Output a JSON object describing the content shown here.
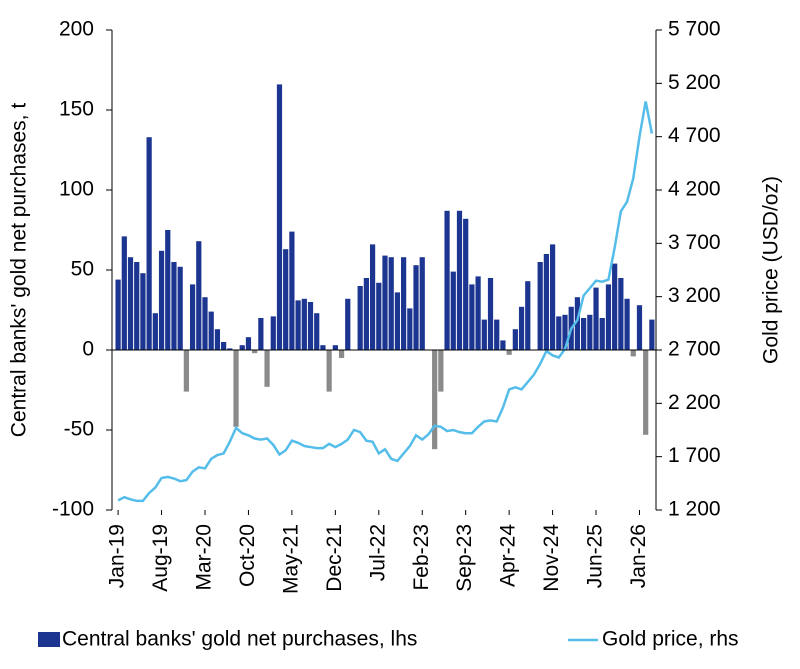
{
  "chart_data": {
    "type": "bar",
    "y_label": "Central banks' gold net purchases, t",
    "y2_label": "Gold price (USD/oz)",
    "categories": [
      "Jan-19",
      null,
      null,
      null,
      null,
      null,
      null,
      "Aug-19",
      null,
      null,
      null,
      null,
      null,
      null,
      "Mar-20",
      null,
      null,
      null,
      null,
      null,
      null,
      "Oct-20",
      null,
      null,
      null,
      null,
      null,
      null,
      "May-21",
      null,
      null,
      null,
      null,
      null,
      null,
      "Dec-21",
      null,
      null,
      null,
      null,
      null,
      null,
      "Jul-22",
      null,
      null,
      null,
      null,
      null,
      null,
      "Feb-23",
      null,
      null,
      null,
      null,
      null,
      null,
      "Sep-23",
      null,
      null,
      null,
      null,
      null,
      null,
      "Apr-24",
      null,
      null,
      null,
      null,
      null,
      null,
      "Nov-24",
      null,
      null,
      null,
      null,
      null,
      null,
      "Jun-25",
      null,
      null,
      null,
      null,
      null,
      null,
      "Jan-26",
      null,
      null
    ],
    "series": [
      {
        "name": "Central banks' gold net purchases, lhs",
        "type": "bar",
        "color": "#1c3591",
        "negative_color": "#8a8a8a",
        "values": [
          44,
          71,
          58,
          55,
          48,
          133,
          23,
          62,
          75,
          55,
          52,
          -26,
          41,
          68,
          33,
          24,
          13,
          5,
          1,
          -48,
          3,
          8,
          -2,
          20,
          -23,
          21,
          166,
          63,
          74,
          31,
          32,
          30,
          23,
          3,
          -26,
          3,
          -5,
          32,
          0,
          40,
          45,
          66,
          42,
          59,
          58,
          36,
          58,
          26,
          53,
          58,
          0,
          -62,
          -26,
          87,
          49,
          87,
          82,
          41,
          46,
          19,
          45,
          19,
          6,
          -3,
          13,
          27,
          43,
          0,
          55,
          60,
          66,
          21,
          22,
          27,
          33,
          20,
          22,
          39,
          20,
          41,
          54,
          45,
          32,
          -4,
          28,
          -53,
          19
        ]
      },
      {
        "name": "Gold price, rhs",
        "type": "line",
        "axis": "y2",
        "color": "#55bde9",
        "values": [
          1290,
          1320,
          1300,
          1285,
          1285,
          1360,
          1410,
          1500,
          1510,
          1495,
          1470,
          1480,
          1560,
          1600,
          1590,
          1680,
          1715,
          1730,
          1840,
          1970,
          1920,
          1900,
          1870,
          1860,
          1870,
          1810,
          1720,
          1760,
          1850,
          1830,
          1800,
          1790,
          1780,
          1780,
          1820,
          1790,
          1820,
          1860,
          1950,
          1930,
          1850,
          1840,
          1730,
          1770,
          1680,
          1660,
          1730,
          1800,
          1900,
          1860,
          1910,
          1990,
          1980,
          1940,
          1950,
          1930,
          1920,
          1920,
          1980,
          2030,
          2040,
          2030,
          2160,
          2330,
          2350,
          2330,
          2400,
          2470,
          2570,
          2690,
          2650,
          2630,
          2710,
          2900,
          2980,
          3210,
          3280,
          3350,
          3340,
          3360,
          3660,
          4000,
          4090,
          4310,
          4700,
          5030,
          4730
        ]
      }
    ],
    "ylim": [
      -100,
      200
    ],
    "yticks": [
      -100,
      -50,
      0,
      50,
      100,
      150,
      200
    ],
    "y2lim": [
      1200,
      5700
    ],
    "y2ticks": [
      {
        "value": 1200,
        "label": "1 200"
      },
      {
        "value": 1700,
        "label": "1 700"
      },
      {
        "value": 2200,
        "label": "2 200"
      },
      {
        "value": 2700,
        "label": "2 700"
      },
      {
        "value": 3200,
        "label": "3 200"
      },
      {
        "value": 3700,
        "label": "3 700"
      },
      {
        "value": 4200,
        "label": "4 200"
      },
      {
        "value": 4700,
        "label": "4 700"
      },
      {
        "value": 5200,
        "label": "5 200"
      },
      {
        "value": 5700,
        "label": "5 700"
      }
    ]
  }
}
